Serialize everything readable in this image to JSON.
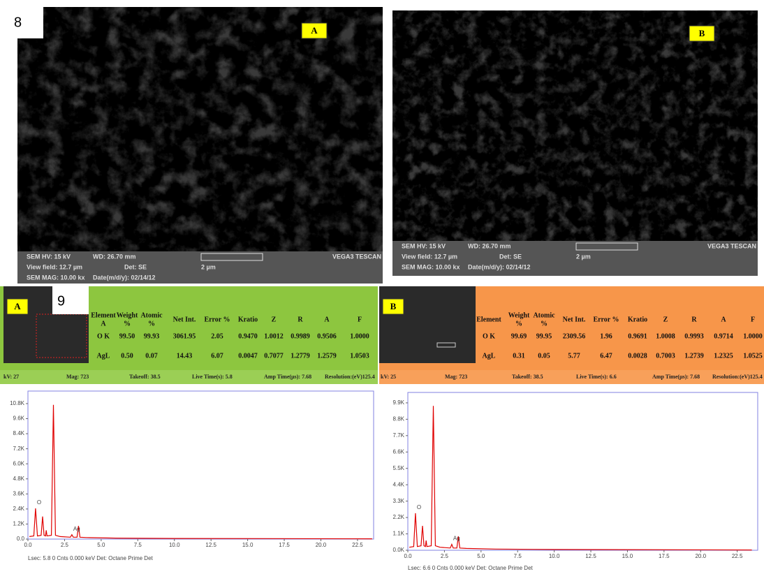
{
  "figure8": {
    "label": "8",
    "images": [
      {
        "label": "A",
        "hv": "SEM HV: 15 kV",
        "wd": "WD: 26.70 mm",
        "vendor": "VEGA3 TESCAN",
        "field": "View field: 12.7 µm",
        "det": "Det: SE",
        "scale": "2 µm",
        "mag": "SEM MAG: 10.00 kx",
        "date": "Date(m/d/y): 02/14/12"
      },
      {
        "label": "B",
        "hv": "SEM HV: 15 kV",
        "wd": "WD: 26.70 mm",
        "vendor": "VEGA3 TESCAN",
        "field": "View field: 12.7 µm",
        "det": "Det: SE",
        "scale": "2 µm",
        "mag": "SEM MAG: 10.00 kx",
        "date": "Date(m/d/y): 02/14/12"
      }
    ]
  },
  "figure9": {
    "label": "9",
    "panels": [
      {
        "label": "A",
        "headers": [
          [
            "Element",
            "A"
          ],
          [
            "Weight",
            "%"
          ],
          [
            "Atomic",
            "%"
          ],
          [
            "Net Int."
          ],
          [
            "Error %"
          ],
          [
            "Kratio"
          ],
          [
            "Z"
          ],
          [
            "R"
          ],
          [
            "A"
          ],
          [
            "F"
          ]
        ],
        "rows": [
          [
            "O K",
            "99.50",
            "99.93",
            "3061.95",
            "2.05",
            "0.9470",
            "1.0012",
            "0.9989",
            "0.9506",
            "1.0000"
          ],
          [
            "AgL",
            "0.50",
            "0.07",
            "14.43",
            "6.07",
            "0.0047",
            "0.7077",
            "1.2779",
            "1.2579",
            "1.0503"
          ]
        ],
        "info": [
          "kV: 27",
          "Mag: 723",
          "Takeoff: 38.5",
          "Live Time(s): 5.8",
          "Amp Time(µs): 7.68",
          "Resolution:(eV)125.4"
        ],
        "footer": "Lsec: 5.8 0 Cnts 0.000 keV Det: Octane Prime Det"
      },
      {
        "label": "B",
        "headers": [
          [
            "Element"
          ],
          [
            "Weight",
            "%"
          ],
          [
            "Atomic",
            "%"
          ],
          [
            "Net Int."
          ],
          [
            "Error %"
          ],
          [
            "Kratio"
          ],
          [
            "Z"
          ],
          [
            "R"
          ],
          [
            "A"
          ],
          [
            "F"
          ]
        ],
        "rows": [
          [
            "O K",
            "99.69",
            "99.95",
            "2309.56",
            "1.96",
            "0.9691",
            "1.0008",
            "0.9993",
            "0.9714",
            "1.0000"
          ],
          [
            "AgL",
            "0.31",
            "0.05",
            "5.77",
            "6.47",
            "0.0028",
            "0.7003",
            "1.2739",
            "1.2325",
            "1.0525"
          ]
        ],
        "info": [
          "kV: 25",
          "Mag: 723",
          "Takeoff: 38.5",
          "Live Time(s): 6.6",
          "Amp Time(µs): 7.68",
          "Resolution:(eV)125.4"
        ],
        "footer": "Lsec: 6.6 0 Cnts 0.000 keV Det: Octane Prime Det"
      }
    ]
  },
  "chart_data": [
    {
      "type": "line",
      "color": "#e00000",
      "x": [
        0.1,
        0.4,
        0.52,
        0.65,
        0.9,
        1.0,
        1.1,
        1.2,
        1.25,
        1.3,
        1.6,
        1.74,
        1.88,
        2.2,
        2.9,
        3.0,
        3.1,
        3.35,
        3.45,
        3.55,
        4.0,
        6.0,
        10.0,
        23.5
      ],
      "values": [
        200,
        250,
        2450,
        250,
        300,
        1800,
        300,
        250,
        700,
        250,
        300,
        10700,
        300,
        200,
        150,
        350,
        150,
        150,
        1050,
        150,
        120,
        80,
        50,
        20
      ],
      "annotations": [
        {
          "text": "O",
          "x": 0.52,
          "y": 2450
        },
        {
          "text": "Ag",
          "x": 3.0,
          "y": 350
        }
      ],
      "xlim": [
        0,
        23.6
      ],
      "ylim": [
        0,
        11800
      ],
      "xticks": [
        {
          "value": 0,
          "label": "0.0"
        },
        2.5,
        {
          "value": 5,
          "label": "5.0"
        },
        7.5,
        {
          "value": 10,
          "label": "10.0"
        },
        12.5,
        {
          "value": 15,
          "label": "15.0"
        },
        17.5,
        {
          "value": 20,
          "label": "20.0"
        },
        22.5
      ],
      "yticks": [
        {
          "value": 0,
          "label": "0.0"
        },
        {
          "value": 1200,
          "label": "1.2K"
        },
        {
          "value": 2400,
          "label": "2.4K"
        },
        {
          "value": 3600,
          "label": "3.6K"
        },
        {
          "value": 4800,
          "label": "4.8K"
        },
        {
          "value": 6000,
          "label": "6.0K"
        },
        {
          "value": 7200,
          "label": "7.2K"
        },
        {
          "value": 8400,
          "label": "8.4K"
        },
        {
          "value": 9600,
          "label": "9.6K"
        },
        {
          "value": 10800,
          "label": "10.8K"
        }
      ]
    },
    {
      "type": "line",
      "color": "#e00000",
      "x": [
        0.1,
        0.4,
        0.52,
        0.65,
        0.9,
        1.0,
        1.1,
        1.2,
        1.25,
        1.3,
        1.6,
        1.74,
        1.88,
        2.2,
        2.9,
        3.0,
        3.1,
        3.35,
        3.45,
        3.55,
        4.0,
        6.0,
        10.0,
        23.5
      ],
      "values": [
        200,
        250,
        2490,
        250,
        300,
        1640,
        300,
        250,
        650,
        250,
        300,
        9700,
        300,
        200,
        150,
        400,
        150,
        150,
        940,
        150,
        120,
        80,
        50,
        20
      ],
      "annotations": [
        {
          "text": "O",
          "x": 0.52,
          "y": 2490
        },
        {
          "text": "Ag",
          "x": 3.0,
          "y": 400
        }
      ],
      "xlim": [
        0,
        23.9
      ],
      "ylim": [
        0,
        10600
      ],
      "xticks": [
        {
          "value": 0,
          "label": "0.0"
        },
        2.5,
        {
          "value": 5,
          "label": "5.0"
        },
        7.5,
        {
          "value": 10,
          "label": "10.0"
        },
        12.5,
        {
          "value": 15,
          "label": "15.0"
        },
        17.5,
        {
          "value": 20,
          "label": "20.0"
        },
        22.5
      ],
      "yticks": [
        {
          "value": 0,
          "label": "0.0K"
        },
        {
          "value": 1100,
          "label": "1.1K"
        },
        {
          "value": 2200,
          "label": "2.2K"
        },
        {
          "value": 3300,
          "label": "3.3K"
        },
        {
          "value": 4400,
          "label": "4.4K"
        },
        {
          "value": 5500,
          "label": "5.5K"
        },
        {
          "value": 6600,
          "label": "6.6K"
        },
        {
          "value": 7700,
          "label": "7.7K"
        },
        {
          "value": 8800,
          "label": "8.8K"
        },
        {
          "value": 9900,
          "label": "9.9K"
        }
      ]
    }
  ]
}
